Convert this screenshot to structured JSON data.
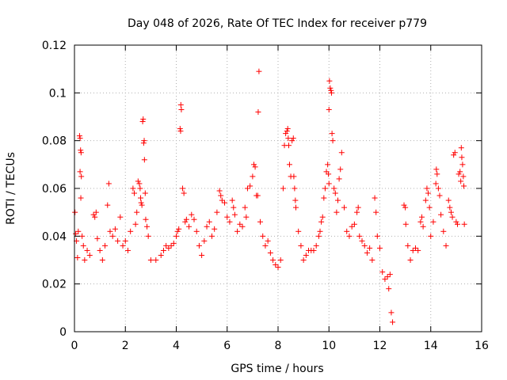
{
  "chart_data": {
    "type": "scatter",
    "title": "Day 048 of 2026, Rate Of TEC Index for receiver p779",
    "xlabel": "GPS time / hours",
    "ylabel": "ROTI / TECUs",
    "xlim": [
      0,
      16
    ],
    "ylim": [
      0,
      0.12
    ],
    "x_ticks": [
      0,
      2,
      4,
      6,
      8,
      10,
      12,
      14,
      16
    ],
    "x_tick_labels": [
      "0",
      "2",
      "4",
      "6",
      "8",
      "10",
      "12",
      "14",
      "16"
    ],
    "y_ticks": [
      0,
      0.02,
      0.04,
      0.06,
      0.08,
      0.1,
      0.12
    ],
    "y_tick_labels": [
      "0",
      "0.02",
      "0.04",
      "0.06",
      "0.08",
      "0.1",
      "0.12"
    ],
    "grid": true,
    "marker": "+",
    "marker_color": "#ff0000",
    "series": [
      {
        "name": "ROTI",
        "points": [
          [
            0.02,
            0.05
          ],
          [
            0.05,
            0.041
          ],
          [
            0.08,
            0.038
          ],
          [
            0.12,
            0.031
          ],
          [
            0.15,
            0.042
          ],
          [
            0.2,
            0.082
          ],
          [
            0.22,
            0.081
          ],
          [
            0.24,
            0.076
          ],
          [
            0.26,
            0.075
          ],
          [
            0.22,
            0.067
          ],
          [
            0.27,
            0.065
          ],
          [
            0.25,
            0.056
          ],
          [
            0.3,
            0.04
          ],
          [
            0.35,
            0.036
          ],
          [
            0.4,
            0.03
          ],
          [
            0.5,
            0.034
          ],
          [
            0.6,
            0.032
          ],
          [
            0.75,
            0.049
          ],
          [
            0.8,
            0.048
          ],
          [
            0.85,
            0.05
          ],
          [
            0.9,
            0.039
          ],
          [
            1.0,
            0.034
          ],
          [
            1.1,
            0.03
          ],
          [
            1.2,
            0.036
          ],
          [
            1.3,
            0.053
          ],
          [
            1.35,
            0.062
          ],
          [
            1.4,
            0.042
          ],
          [
            1.5,
            0.04
          ],
          [
            1.6,
            0.043
          ],
          [
            1.7,
            0.038
          ],
          [
            1.8,
            0.048
          ],
          [
            1.9,
            0.036
          ],
          [
            2.0,
            0.038
          ],
          [
            2.1,
            0.034
          ],
          [
            2.2,
            0.042
          ],
          [
            2.3,
            0.06
          ],
          [
            2.35,
            0.058
          ],
          [
            2.4,
            0.045
          ],
          [
            2.45,
            0.05
          ],
          [
            2.5,
            0.063
          ],
          [
            2.55,
            0.062
          ],
          [
            2.58,
            0.06
          ],
          [
            2.6,
            0.056
          ],
          [
            2.62,
            0.054
          ],
          [
            2.65,
            0.053
          ],
          [
            2.68,
            0.088
          ],
          [
            2.7,
            0.089
          ],
          [
            2.72,
            0.079
          ],
          [
            2.74,
            0.08
          ],
          [
            2.75,
            0.072
          ],
          [
            2.78,
            0.058
          ],
          [
            2.8,
            0.047
          ],
          [
            2.85,
            0.044
          ],
          [
            2.9,
            0.04
          ],
          [
            3.0,
            0.03
          ],
          [
            3.2,
            0.03
          ],
          [
            3.4,
            0.032
          ],
          [
            3.5,
            0.034
          ],
          [
            3.6,
            0.036
          ],
          [
            3.7,
            0.035
          ],
          [
            3.8,
            0.036
          ],
          [
            3.9,
            0.037
          ],
          [
            4.0,
            0.04
          ],
          [
            4.05,
            0.042
          ],
          [
            4.1,
            0.043
          ],
          [
            4.15,
            0.085
          ],
          [
            4.17,
            0.084
          ],
          [
            4.18,
            0.095
          ],
          [
            4.2,
            0.093
          ],
          [
            4.25,
            0.06
          ],
          [
            4.3,
            0.058
          ],
          [
            4.35,
            0.046
          ],
          [
            4.4,
            0.047
          ],
          [
            4.5,
            0.044
          ],
          [
            4.6,
            0.049
          ],
          [
            4.7,
            0.047
          ],
          [
            4.8,
            0.042
          ],
          [
            4.9,
            0.036
          ],
          [
            5.0,
            0.032
          ],
          [
            5.1,
            0.038
          ],
          [
            5.2,
            0.044
          ],
          [
            5.3,
            0.046
          ],
          [
            5.4,
            0.04
          ],
          [
            5.5,
            0.043
          ],
          [
            5.6,
            0.05
          ],
          [
            5.7,
            0.059
          ],
          [
            5.75,
            0.057
          ],
          [
            5.8,
            0.055
          ],
          [
            5.9,
            0.054
          ],
          [
            6.0,
            0.048
          ],
          [
            6.1,
            0.046
          ],
          [
            6.2,
            0.055
          ],
          [
            6.25,
            0.052
          ],
          [
            6.3,
            0.049
          ],
          [
            6.4,
            0.042
          ],
          [
            6.5,
            0.045
          ],
          [
            6.6,
            0.044
          ],
          [
            6.7,
            0.052
          ],
          [
            6.75,
            0.048
          ],
          [
            6.8,
            0.06
          ],
          [
            6.9,
            0.061
          ],
          [
            7.0,
            0.065
          ],
          [
            7.05,
            0.07
          ],
          [
            7.1,
            0.069
          ],
          [
            7.15,
            0.057
          ],
          [
            7.2,
            0.057
          ],
          [
            7.25,
            0.109
          ],
          [
            7.22,
            0.092
          ],
          [
            7.3,
            0.046
          ],
          [
            7.4,
            0.04
          ],
          [
            7.5,
            0.036
          ],
          [
            7.6,
            0.038
          ],
          [
            7.7,
            0.033
          ],
          [
            7.8,
            0.03
          ],
          [
            7.9,
            0.028
          ],
          [
            8.0,
            0.027
          ],
          [
            8.1,
            0.03
          ],
          [
            8.2,
            0.06
          ],
          [
            8.25,
            0.078
          ],
          [
            8.3,
            0.083
          ],
          [
            8.35,
            0.084
          ],
          [
            8.38,
            0.085
          ],
          [
            8.4,
            0.081
          ],
          [
            8.42,
            0.078
          ],
          [
            8.45,
            0.07
          ],
          [
            8.5,
            0.065
          ],
          [
            8.55,
            0.08
          ],
          [
            8.6,
            0.081
          ],
          [
            8.62,
            0.065
          ],
          [
            8.65,
            0.06
          ],
          [
            8.68,
            0.055
          ],
          [
            8.7,
            0.052
          ],
          [
            8.8,
            0.042
          ],
          [
            8.9,
            0.036
          ],
          [
            9.0,
            0.03
          ],
          [
            9.1,
            0.032
          ],
          [
            9.2,
            0.034
          ],
          [
            9.3,
            0.034
          ],
          [
            9.4,
            0.034
          ],
          [
            9.5,
            0.036
          ],
          [
            9.6,
            0.04
          ],
          [
            9.65,
            0.042
          ],
          [
            9.7,
            0.046
          ],
          [
            9.75,
            0.048
          ],
          [
            9.8,
            0.056
          ],
          [
            9.85,
            0.06
          ],
          [
            9.9,
            0.067
          ],
          [
            9.95,
            0.07
          ],
          [
            9.98,
            0.066
          ],
          [
            10.0,
            0.062
          ],
          [
            10.02,
            0.105
          ],
          [
            10.05,
            0.102
          ],
          [
            10.08,
            0.101
          ],
          [
            10.1,
            0.1
          ],
          [
            10.0,
            0.093
          ],
          [
            10.12,
            0.083
          ],
          [
            10.15,
            0.08
          ],
          [
            10.2,
            0.06
          ],
          [
            10.25,
            0.058
          ],
          [
            10.3,
            0.05
          ],
          [
            10.35,
            0.055
          ],
          [
            10.4,
            0.064
          ],
          [
            10.45,
            0.068
          ],
          [
            10.5,
            0.075
          ],
          [
            10.6,
            0.052
          ],
          [
            10.7,
            0.042
          ],
          [
            10.8,
            0.04
          ],
          [
            10.9,
            0.044
          ],
          [
            11.0,
            0.045
          ],
          [
            11.1,
            0.05
          ],
          [
            11.15,
            0.052
          ],
          [
            11.2,
            0.04
          ],
          [
            11.3,
            0.038
          ],
          [
            11.4,
            0.036
          ],
          [
            11.5,
            0.033
          ],
          [
            11.6,
            0.035
          ],
          [
            11.7,
            0.03
          ],
          [
            11.8,
            0.056
          ],
          [
            11.85,
            0.05
          ],
          [
            11.9,
            0.04
          ],
          [
            12.0,
            0.035
          ],
          [
            12.1,
            0.025
          ],
          [
            12.2,
            0.022
          ],
          [
            12.3,
            0.023
          ],
          [
            12.35,
            0.018
          ],
          [
            12.4,
            0.024
          ],
          [
            12.45,
            0.008
          ],
          [
            12.5,
            0.004
          ],
          [
            12.95,
            0.053
          ],
          [
            13.0,
            0.052
          ],
          [
            13.02,
            0.045
          ],
          [
            13.1,
            0.036
          ],
          [
            13.2,
            0.03
          ],
          [
            13.3,
            0.034
          ],
          [
            13.4,
            0.035
          ],
          [
            13.5,
            0.034
          ],
          [
            13.6,
            0.046
          ],
          [
            13.65,
            0.048
          ],
          [
            13.7,
            0.044
          ],
          [
            13.8,
            0.055
          ],
          [
            13.85,
            0.06
          ],
          [
            13.9,
            0.058
          ],
          [
            13.95,
            0.052
          ],
          [
            14.0,
            0.04
          ],
          [
            14.1,
            0.046
          ],
          [
            14.2,
            0.062
          ],
          [
            14.22,
            0.068
          ],
          [
            14.25,
            0.066
          ],
          [
            14.3,
            0.06
          ],
          [
            14.35,
            0.057
          ],
          [
            14.4,
            0.049
          ],
          [
            14.5,
            0.042
          ],
          [
            14.6,
            0.036
          ],
          [
            14.7,
            0.055
          ],
          [
            14.75,
            0.052
          ],
          [
            14.8,
            0.05
          ],
          [
            14.85,
            0.048
          ],
          [
            14.9,
            0.074
          ],
          [
            14.95,
            0.075
          ],
          [
            15.0,
            0.046
          ],
          [
            15.05,
            0.045
          ],
          [
            15.1,
            0.066
          ],
          [
            15.15,
            0.067
          ],
          [
            15.18,
            0.063
          ],
          [
            15.2,
            0.077
          ],
          [
            15.22,
            0.073
          ],
          [
            15.25,
            0.07
          ],
          [
            15.28,
            0.065
          ],
          [
            15.3,
            0.061
          ],
          [
            15.32,
            0.045
          ]
        ]
      }
    ]
  }
}
